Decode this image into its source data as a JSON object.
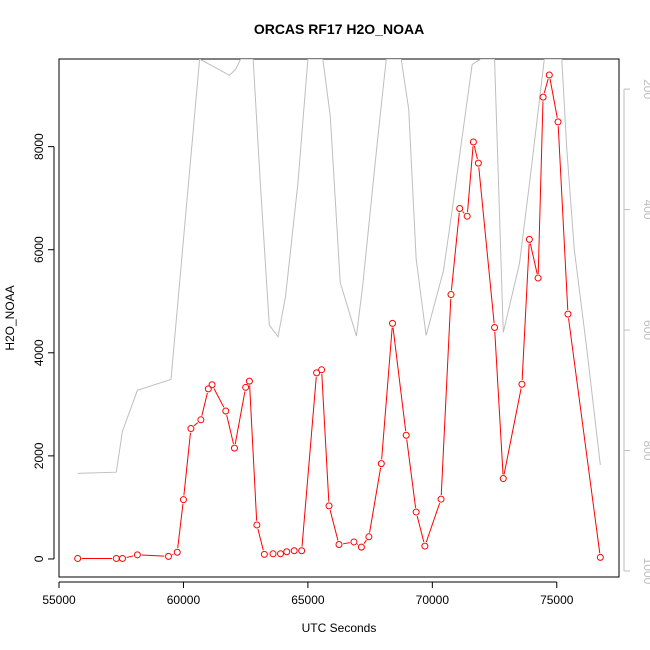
{
  "chart_data": {
    "type": "line",
    "title": "ORCAS RF17 H2O_NOAA",
    "xlabel": "UTC Seconds",
    "ylabel": "H2O_NOAA",
    "xlim": [
      55000,
      77500
    ],
    "ylim": [
      -350,
      9700
    ],
    "y2lim": [
      1010,
      150
    ],
    "y2_reversed": true,
    "x_ticks": [
      55000,
      60000,
      65000,
      70000,
      75000
    ],
    "x_tick_labels": [
      "55000",
      "60000",
      "65000",
      "70000",
      "75000"
    ],
    "y_ticks": [
      0,
      2000,
      4000,
      6000,
      8000
    ],
    "y_tick_labels": [
      "0",
      "2000",
      "4000",
      "6000",
      "8000"
    ],
    "y2_ticks": [
      200,
      400,
      600,
      800,
      1000
    ],
    "y2_tick_labels": [
      "200",
      "400",
      "600",
      "800",
      "1000"
    ],
    "grid": false,
    "colors": {
      "primary": "#ff0000",
      "secondary": "#bebebe",
      "axis": "#000000"
    },
    "series": [
      {
        "axis": "left",
        "style": "line+circle",
        "color": "#ff0000",
        "x": [
          55750,
          57300,
          57550,
          58150,
          59400,
          59750,
          60000,
          60300,
          60700,
          61000,
          61150,
          61700,
          62050,
          62500,
          62650,
          62950,
          63250,
          63600,
          63900,
          64150,
          64450,
          64750,
          65350,
          65550,
          65850,
          66250,
          66850,
          67150,
          67450,
          67950,
          68400,
          68950,
          69350,
          69700,
          70350,
          70750,
          71100,
          71400,
          71650,
          71850,
          72500,
          72850,
          73600,
          73900,
          74250,
          74450,
          74700,
          75050,
          75450,
          76750
        ],
        "y": [
          10,
          10,
          10,
          80,
          50,
          130,
          1150,
          2530,
          2700,
          3300,
          3380,
          2870,
          2150,
          3330,
          3450,
          660,
          90,
          100,
          100,
          140,
          160,
          160,
          3610,
          3670,
          1030,
          280,
          330,
          230,
          430,
          1850,
          4570,
          2400,
          910,
          250,
          1160,
          5130,
          6800,
          6650,
          8090,
          7680,
          4490,
          1560,
          3390,
          6200,
          5450,
          8960,
          9390,
          8480,
          4750,
          30
        ]
      },
      {
        "axis": "right",
        "style": "line",
        "color": "#bebebe",
        "x": [
          55750,
          57300,
          57550,
          58150,
          59500,
          60000,
          60650,
          61850,
          62100,
          62300,
          62600,
          62800,
          63100,
          63450,
          63800,
          64100,
          64600,
          65000,
          65250,
          65600,
          65900,
          66300,
          66950,
          67200,
          67800,
          68150,
          68750,
          69050,
          69350,
          69750,
          70450,
          70800,
          71150,
          71600,
          71950,
          72500,
          72850,
          73500,
          73950,
          74500,
          74850,
          75200,
          75400,
          75700,
          76200,
          76750
        ],
        "y": [
          838,
          836,
          768,
          700,
          682,
          450,
          150,
          177,
          167,
          150,
          150,
          150,
          364,
          592,
          611,
          545,
          356,
          150,
          150,
          150,
          245,
          521,
          610,
          527,
          284,
          150,
          150,
          233,
          482,
          609,
          501,
          400,
          294,
          159,
          150,
          150,
          604,
          490,
          341,
          150,
          150,
          150,
          298,
          465,
          629,
          824
        ]
      }
    ]
  }
}
